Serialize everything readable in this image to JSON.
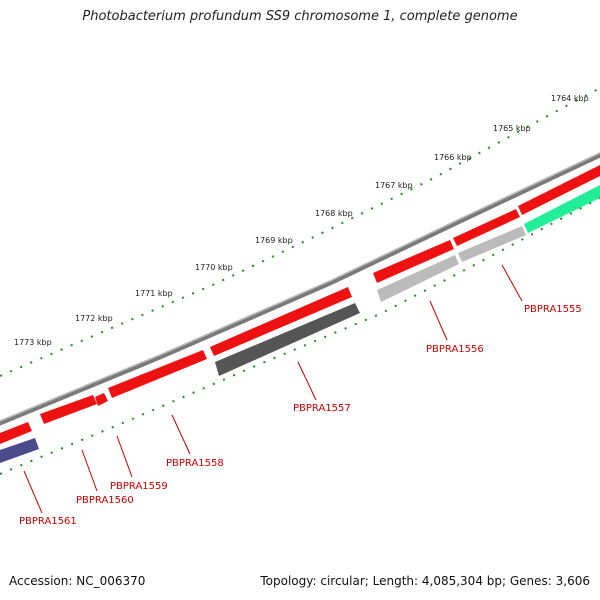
{
  "title": "Photobacterium profundum SS9 chromosome 1, complete genome",
  "footer": {
    "accession": "Accession: NC_006370",
    "topology": "Topology: circular; Length: 4,085,304 bp; Genes: 3,606"
  },
  "colors": {
    "backbone": "#7a7a7a",
    "forward_gene": "#ee1111",
    "ruler": "#228b22",
    "label": "#cc0000",
    "reverse_dark": "#555555",
    "reverse_light": "#bbbbbb",
    "reverse_teal": "#22ee99",
    "reverse_navy": "#4a4a8c"
  },
  "ruler_labels": [
    "1764 kbp",
    "1765 kbp",
    "1766 kbp",
    "1767 kbp",
    "1768 kbp",
    "1769 kbp",
    "1770 kbp",
    "1771 kbp",
    "1772 kbp",
    "1773 kbp"
  ],
  "gene_labels": [
    "PBPRA1555",
    "PBPRA1556",
    "PBPRA1557",
    "PBPRA1558",
    "PBPRA1559",
    "PBPRA1560",
    "PBPRA1561"
  ]
}
